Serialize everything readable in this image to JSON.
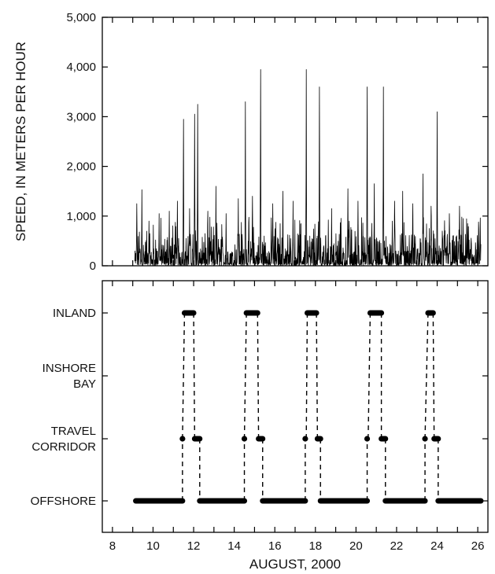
{
  "chart_data": [
    {
      "type": "line",
      "panel": "top",
      "ylabel": "SPEED, IN METERS PER HOUR",
      "xlabel": "",
      "xlim": [
        7.5,
        26.5
      ],
      "ylim": [
        0,
        5000
      ],
      "y_ticks": [
        0,
        1000,
        2000,
        3000,
        4000,
        5000
      ],
      "y_tick_labels": [
        "0",
        "1,000",
        "2,000",
        "3,000",
        "4,000",
        "5,000"
      ],
      "x_ticks": [
        8,
        9,
        10,
        11,
        12,
        13,
        14,
        15,
        16,
        17,
        18,
        19,
        20,
        21,
        22,
        23,
        24,
        25,
        26
      ],
      "grid": false,
      "series": [
        {
          "peaks": [
            [
              9.2,
              1250
            ],
            [
              9.45,
              1530
            ],
            [
              9.8,
              900
            ],
            [
              10.3,
              1050
            ],
            [
              10.8,
              1100
            ],
            [
              11.2,
              1300
            ],
            [
              11.5,
              2950
            ],
            [
              11.8,
              1150
            ],
            [
              12.05,
              3050
            ],
            [
              12.2,
              3250
            ],
            [
              12.7,
              1100
            ],
            [
              13.1,
              1600
            ],
            [
              13.6,
              1050
            ],
            [
              14.2,
              1350
            ],
            [
              14.55,
              3300
            ],
            [
              14.9,
              1400
            ],
            [
              15.3,
              3950
            ],
            [
              15.9,
              1250
            ],
            [
              16.4,
              1500
            ],
            [
              16.9,
              1300
            ],
            [
              17.55,
              3950
            ],
            [
              18.2,
              3600
            ],
            [
              18.8,
              1150
            ],
            [
              19.6,
              1550
            ],
            [
              20.1,
              1300
            ],
            [
              20.55,
              3600
            ],
            [
              20.9,
              1650
            ],
            [
              21.35,
              3600
            ],
            [
              21.9,
              1300
            ],
            [
              22.3,
              1500
            ],
            [
              22.8,
              1250
            ],
            [
              23.3,
              1850
            ],
            [
              23.7,
              1200
            ],
            [
              24.0,
              3100
            ],
            [
              24.6,
              1050
            ],
            [
              25.1,
              1200
            ],
            [
              25.5,
              850
            ],
            [
              26.05,
              750
            ]
          ]
        }
      ]
    },
    {
      "type": "scatter",
      "panel": "bottom",
      "xlabel": "AUGUST, 2000",
      "xlim": [
        7.5,
        26.5
      ],
      "x_ticks": [
        8,
        9,
        10,
        11,
        12,
        13,
        14,
        15,
        16,
        17,
        18,
        19,
        20,
        21,
        22,
        23,
        24,
        25,
        26
      ],
      "x_tick_labels": [
        "8",
        "10",
        "12",
        "14",
        "16",
        "18",
        "20",
        "22",
        "24",
        "26"
      ],
      "categories": [
        {
          "key": "offshore",
          "lines": [
            "OFFSHORE"
          ]
        },
        {
          "key": "travel",
          "lines": [
            "TRAVEL",
            "CORRIDOR"
          ]
        },
        {
          "key": "inshore",
          "lines": [
            "INSHORE",
            "BAY"
          ]
        },
        {
          "key": "inland",
          "lines": [
            "INLAND"
          ]
        }
      ],
      "grid": false,
      "segments": [
        {
          "state": 0,
          "x0": 9.15,
          "x1": 11.45
        },
        {
          "state": 1,
          "x0": 11.45,
          "x1": 11.45
        },
        {
          "state": 3,
          "x0": 11.55,
          "x1": 12.0
        },
        {
          "state": 1,
          "x0": 12.05,
          "x1": 12.3
        },
        {
          "state": 0,
          "x0": 12.3,
          "x1": 14.5
        },
        {
          "state": 1,
          "x0": 14.5,
          "x1": 14.5
        },
        {
          "state": 3,
          "x0": 14.6,
          "x1": 15.15
        },
        {
          "state": 1,
          "x0": 15.2,
          "x1": 15.4
        },
        {
          "state": 0,
          "x0": 15.4,
          "x1": 17.5
        },
        {
          "state": 1,
          "x0": 17.5,
          "x1": 17.55
        },
        {
          "state": 3,
          "x0": 17.6,
          "x1": 18.05
        },
        {
          "state": 1,
          "x0": 18.1,
          "x1": 18.25
        },
        {
          "state": 0,
          "x0": 18.25,
          "x1": 20.55
        },
        {
          "state": 1,
          "x0": 20.55,
          "x1": 20.6
        },
        {
          "state": 3,
          "x0": 20.7,
          "x1": 21.25
        },
        {
          "state": 1,
          "x0": 21.25,
          "x1": 21.45
        },
        {
          "state": 0,
          "x0": 21.45,
          "x1": 23.4
        },
        {
          "state": 1,
          "x0": 23.4,
          "x1": 23.4
        },
        {
          "state": 3,
          "x0": 23.55,
          "x1": 23.8
        },
        {
          "state": 1,
          "x0": 23.85,
          "x1": 24.05
        },
        {
          "state": 0,
          "x0": 24.05,
          "x1": 26.15
        }
      ]
    }
  ]
}
